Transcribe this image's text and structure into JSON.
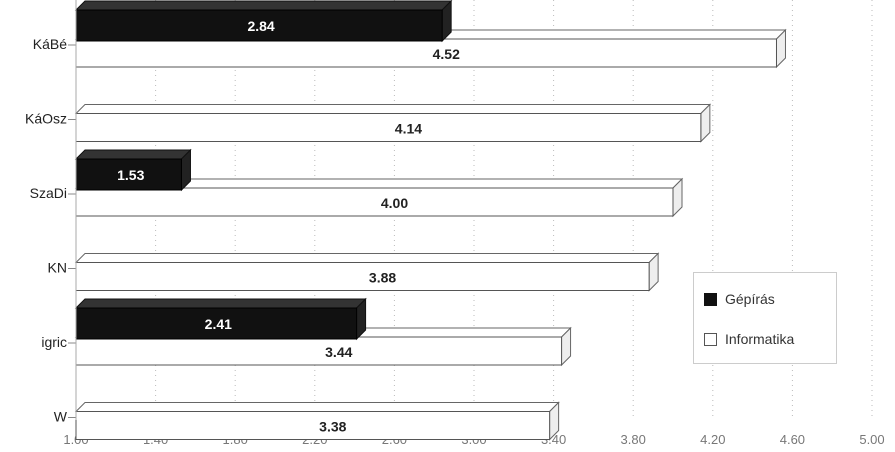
{
  "chart_data": {
    "type": "bar",
    "orientation": "horizontal",
    "categories": [
      "KáBé",
      "KáOsz",
      "SzaDi",
      "KN",
      "igric",
      "W"
    ],
    "series": [
      {
        "name": "Gépírás",
        "color": "#111111",
        "values": [
          2.84,
          null,
          1.53,
          null,
          2.41,
          null
        ]
      },
      {
        "name": "Informatika",
        "color": "#ffffff",
        "values": [
          4.52,
          4.14,
          4.0,
          3.88,
          3.44,
          3.38
        ]
      }
    ],
    "xlim": [
      1.0,
      5.0
    ],
    "x_ticks": [
      "1.00",
      "1.40",
      "1.80",
      "2.20",
      "2.60",
      "3.00",
      "3.40",
      "3.80",
      "4.20",
      "4.60",
      "5.00"
    ],
    "grid": true,
    "legend_position": "right"
  },
  "legend": {
    "items": [
      {
        "label": "Gépírás",
        "color": "#111111"
      },
      {
        "label": "Informatika",
        "color": "#ffffff"
      }
    ]
  }
}
